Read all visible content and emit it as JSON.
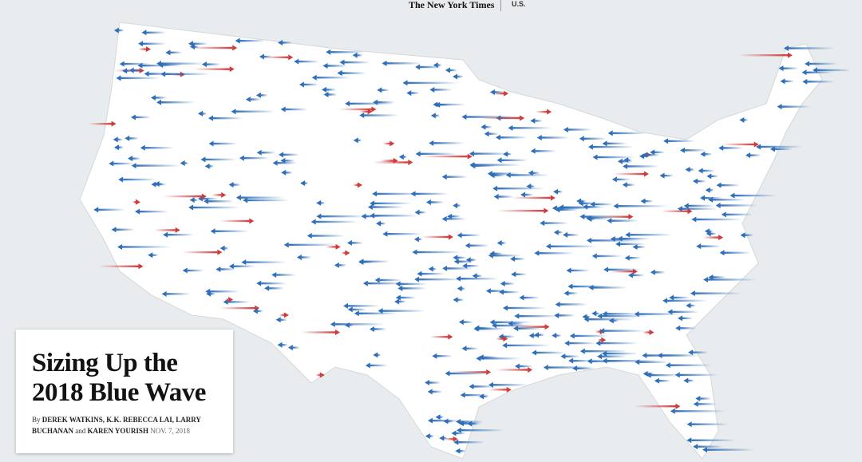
{
  "header": {
    "logo": "The New York Times",
    "section": "U.S."
  },
  "article": {
    "title": "Sizing Up the 2018 Blue Wave",
    "byline": {
      "prefix": "By",
      "authors_1": "DEREK WATKINS, K.K. REBECCA LAI, LARRY BUCHANAN",
      "conjunction": "and",
      "authors_2": "KAREN YOURISH",
      "date": "NOV. 7, 2018"
    }
  }
}
